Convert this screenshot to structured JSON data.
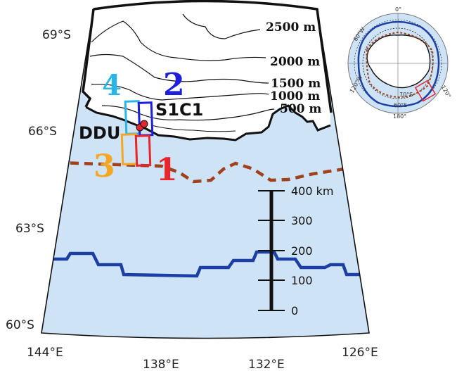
{
  "map": {
    "colors": {
      "ocean": "#cfe3f6",
      "ice_front_fill": "#ffffff",
      "dashed_line": "#a0411e",
      "blue_line": "#1b3fa5",
      "box_1": "#e6262b",
      "box_2": "#1e1edc",
      "box_3": "#f5a623",
      "box_4": "#29b6e6",
      "site_marker": "#e6262b"
    },
    "lat_labels": [
      "69°S",
      "66°S",
      "63°S",
      "60°S"
    ],
    "lon_labels": [
      "144°E",
      "138°E",
      "132°E",
      "126°E"
    ],
    "contour_labels": [
      "2500 m",
      "2000 m",
      "1500 m",
      "1000 m",
      "500 m"
    ],
    "region_labels": [
      "1",
      "2",
      "3",
      "4"
    ],
    "site_labels": {
      "ddu": "DDU",
      "s1c1": "S1C1"
    },
    "scale_bar": {
      "unit_label": "400 km",
      "ticks": [
        "300",
        "200",
        "100",
        "0"
      ]
    }
  },
  "inset": {
    "lon_labels": [
      "0°",
      "60°W",
      "120°W",
      "180°",
      "120°"
    ],
    "lat_labels": [
      "70°S",
      "60°S"
    ]
  }
}
